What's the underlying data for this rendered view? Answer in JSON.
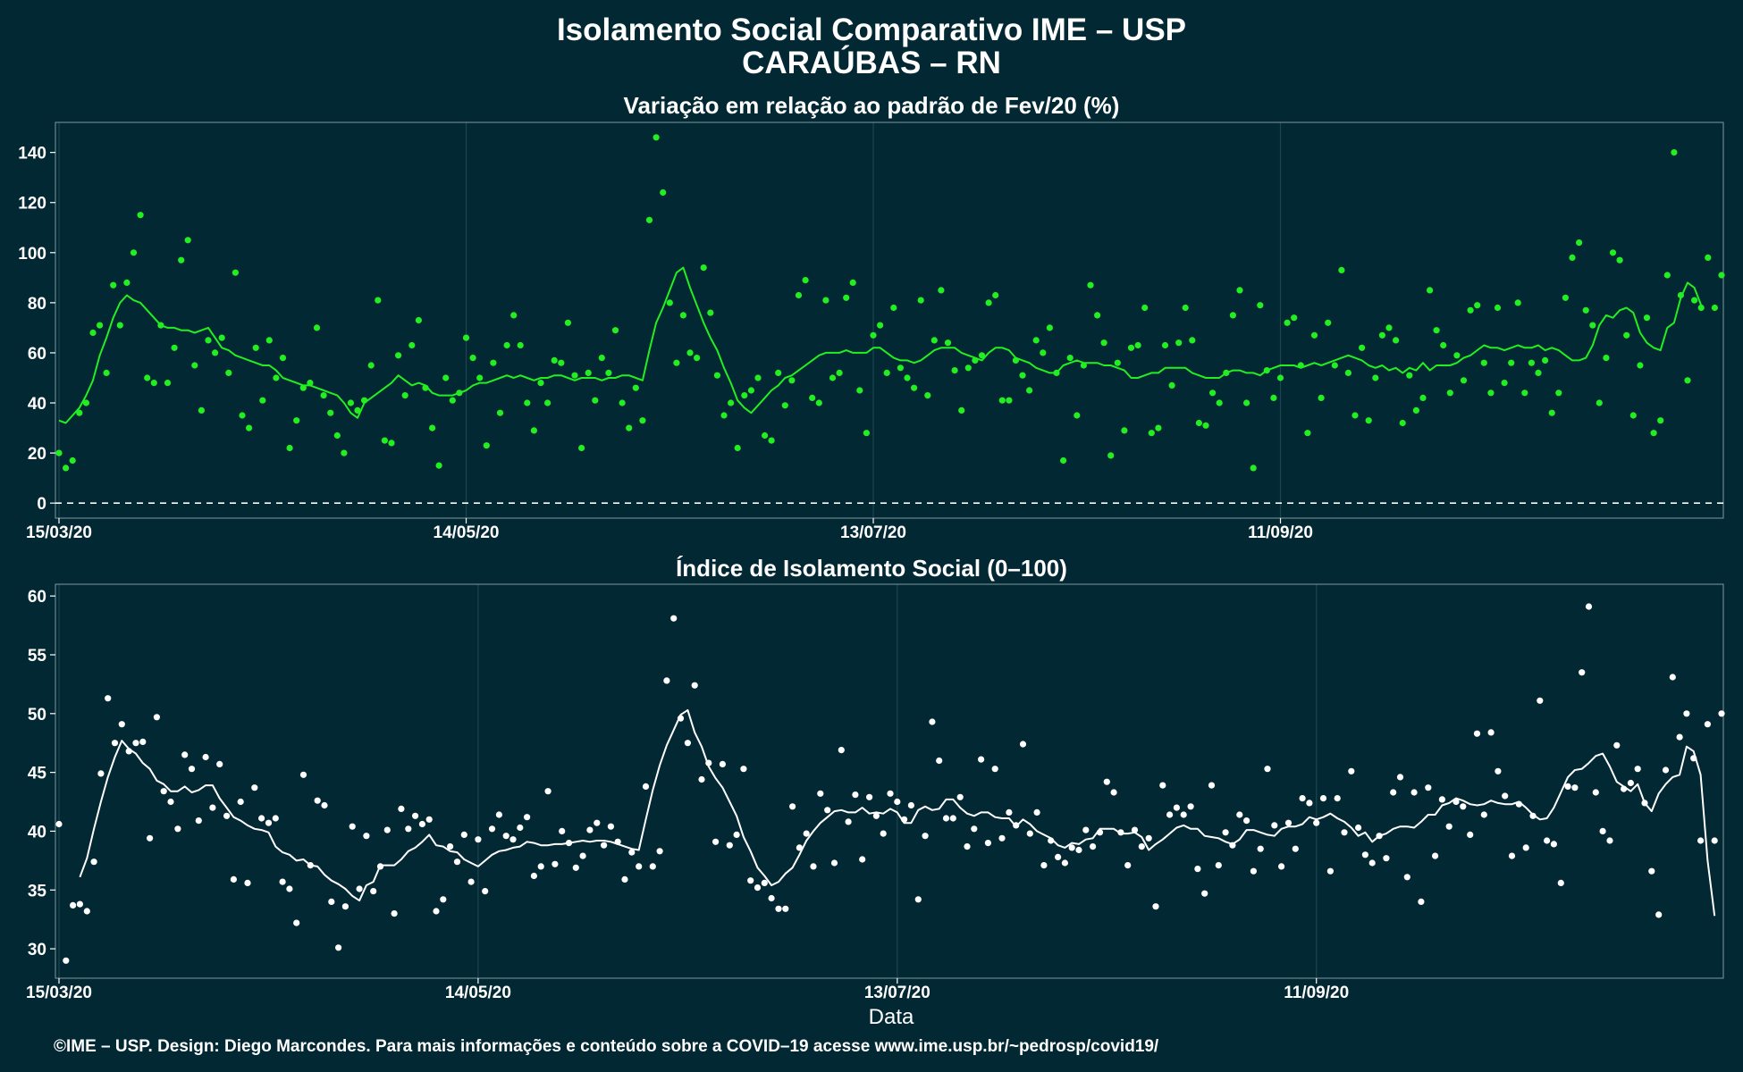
{
  "header": {
    "title": "Isolamento Social Comparativo IME – USP",
    "subtitle": "CARAÚBAS – RN"
  },
  "xlabel": "Data",
  "caption": "©IME – USP. Design: Diego Marcondes. Para mais informações e conteúdo sobre a COVID–19 acesse www.ime.usp.br/~pedrosp/covid19/",
  "colors": {
    "background": "#022833",
    "top_series": "#22ee22",
    "bottom_series": "#ffffff"
  },
  "chart_data": [
    {
      "type": "scatter",
      "title": "Variação em relação ao padrão de Fev/20 (%)",
      "xlabel": "",
      "ylabel": "",
      "x_start_date": "15/03/20",
      "x_tick_labels": [
        "15/03/20",
        "14/05/20",
        "13/07/20",
        "11/09/20"
      ],
      "x_tick_index": [
        0,
        60,
        120,
        180
      ],
      "ylim": [
        -6,
        152
      ],
      "y_ticks": [
        0,
        20,
        40,
        60,
        80,
        100,
        120,
        140
      ],
      "reference_line": 0,
      "series": [
        {
          "role": "points",
          "values": [
            20,
            14,
            17,
            36,
            40,
            68,
            71,
            52,
            87,
            71,
            88,
            100,
            115,
            50,
            48,
            71,
            48,
            62,
            97,
            105,
            55,
            37,
            65,
            60,
            66,
            52,
            92,
            35,
            30,
            62,
            41,
            65,
            50,
            58,
            22,
            33,
            46,
            48,
            70,
            43,
            36,
            27,
            20,
            40,
            37,
            41,
            55,
            81,
            25,
            24,
            59,
            43,
            63,
            73,
            46,
            30,
            15,
            50,
            41,
            44,
            66,
            58,
            50,
            23,
            56,
            36,
            63,
            75,
            63,
            40,
            29,
            48,
            40,
            57,
            56,
            72,
            51,
            22,
            52,
            41,
            58,
            52,
            69,
            40,
            30,
            46,
            33,
            113,
            146,
            124,
            80,
            56,
            75,
            60,
            58,
            94,
            76,
            51,
            35,
            40,
            22,
            43,
            45,
            50,
            27,
            25,
            52,
            39,
            49,
            83,
            89,
            42,
            40,
            81,
            50,
            52,
            82,
            88,
            45,
            28,
            67,
            71,
            52,
            78,
            54,
            50,
            46,
            81,
            43,
            65,
            85,
            64,
            53,
            37,
            54,
            57,
            59,
            80,
            83,
            41,
            41,
            57,
            51,
            45,
            65,
            60,
            70,
            52,
            17,
            58,
            35,
            55,
            87,
            75,
            64,
            19,
            56,
            29,
            62,
            63,
            78,
            28,
            30,
            63,
            47,
            64,
            78,
            65,
            32,
            31,
            44,
            40,
            52,
            75,
            85,
            40,
            14,
            79,
            53,
            42,
            50,
            72,
            74,
            55,
            28,
            67,
            42,
            72,
            55,
            93,
            52,
            35,
            62,
            33,
            50,
            67,
            70,
            65,
            32,
            51,
            37,
            42,
            85,
            69,
            63,
            44,
            59,
            49,
            77,
            79,
            56,
            44,
            78,
            48,
            56,
            80,
            44,
            56,
            52,
            57,
            36,
            44,
            82,
            98,
            104,
            77,
            71,
            40,
            58,
            100,
            97,
            67,
            35,
            55,
            74,
            28,
            33,
            91,
            140,
            83,
            49,
            81,
            78,
            98,
            78,
            91
          ],
          "markers": "circle"
        },
        {
          "role": "moving-average",
          "values": [
            33,
            32,
            35,
            38,
            43,
            49,
            59,
            66,
            74,
            80,
            83,
            81,
            80,
            77,
            74,
            71,
            70,
            70,
            69,
            69,
            68,
            69,
            70,
            66,
            62,
            61,
            59,
            58,
            57,
            56,
            55,
            55,
            53,
            50,
            49,
            48,
            47,
            47,
            46,
            45,
            44,
            43,
            40,
            36,
            34,
            40,
            42,
            44,
            46,
            48,
            51,
            49,
            47,
            48,
            47,
            44,
            43,
            43,
            43,
            44,
            45,
            47,
            48,
            48,
            49,
            50,
            51,
            50,
            51,
            50,
            49,
            50,
            50,
            51,
            51,
            50,
            49,
            50,
            50,
            50,
            49,
            50,
            50,
            51,
            51,
            50,
            49,
            61,
            72,
            78,
            85,
            92,
            94,
            86,
            79,
            72,
            66,
            61,
            54,
            48,
            41,
            38,
            36,
            39,
            42,
            45,
            47,
            50,
            51,
            53,
            55,
            57,
            59,
            60,
            60,
            60,
            61,
            60,
            60,
            60,
            62,
            62,
            60,
            58,
            57,
            57,
            56,
            57,
            59,
            61,
            62,
            62,
            62,
            60,
            59,
            58,
            57,
            60,
            62,
            62,
            61,
            58,
            57,
            56,
            54,
            53,
            52,
            52,
            55,
            56,
            57,
            56,
            56,
            56,
            55,
            55,
            54,
            53,
            50,
            50,
            51,
            52,
            52,
            54,
            54,
            54,
            54,
            52,
            51,
            50,
            50,
            50,
            52,
            53,
            53,
            52,
            52,
            51,
            53,
            54,
            55,
            55,
            55,
            54,
            55,
            56,
            55,
            56,
            57,
            58,
            59,
            58,
            57,
            55,
            54,
            55,
            53,
            54,
            52,
            54,
            53,
            56,
            53,
            55,
            55,
            55,
            56,
            58,
            59,
            61,
            63,
            62,
            62,
            61,
            62,
            63,
            62,
            62,
            63,
            61,
            62,
            61,
            59,
            57,
            57,
            58,
            63,
            71,
            75,
            74,
            77,
            78,
            76,
            68,
            64,
            62,
            61,
            70,
            72,
            82,
            88,
            86,
            79
          ]
        }
      ]
    },
    {
      "type": "scatter",
      "title": "Índice de Isolamento Social (0–100)",
      "xlabel": "Data",
      "ylabel": "",
      "x_start_date": "15/03/20",
      "x_tick_labels": [
        "15/03/20",
        "14/05/20",
        "13/07/20",
        "11/09/20"
      ],
      "x_tick_index": [
        0,
        60,
        120,
        180
      ],
      "ylim": [
        27.5,
        61
      ],
      "y_ticks": [
        30,
        35,
        40,
        45,
        50,
        55,
        60
      ],
      "series": [
        {
          "role": "points",
          "values": [
            40.6,
            29.0,
            33.7,
            33.8,
            33.2,
            37.4,
            44.9,
            51.3,
            47.5,
            49.1,
            46.8,
            47.5,
            47.6,
            39.4,
            49.7,
            43.4,
            42.5,
            40.2,
            46.5,
            45.3,
            40.9,
            46.3,
            42.0,
            45.7,
            41.3,
            35.9,
            42.5,
            35.6,
            43.7,
            41.1,
            40.7,
            41.1,
            35.7,
            35.1,
            32.2,
            44.8,
            37.1,
            42.6,
            42.2,
            34.0,
            30.1,
            33.6,
            40.4,
            35.1,
            39.6,
            34.9,
            37.0,
            40.1,
            33.0,
            41.9,
            40.2,
            41.3,
            40.6,
            41.0,
            33.2,
            34.2,
            38.7,
            37.4,
            39.7,
            35.7,
            39.3,
            34.9,
            40.2,
            41.4,
            39.6,
            39.3,
            40.3,
            41.2,
            36.2,
            37.0,
            43.4,
            37.2,
            40.0,
            39.0,
            36.9,
            37.9,
            40.1,
            40.7,
            38.8,
            40.4,
            39.1,
            35.9,
            38.2,
            37.0,
            43.8,
            37.0,
            38.3,
            52.8,
            58.1,
            49.6,
            47.5,
            52.4,
            44.4,
            45.8,
            39.1,
            45.7,
            38.8,
            39.7,
            45.3,
            35.8,
            35.2,
            35.6,
            34.3,
            33.4,
            33.4,
            42.1,
            38.6,
            39.8,
            37.0,
            43.2,
            41.8,
            37.3,
            46.9,
            40.8,
            43.1,
            37.6,
            42.9,
            41.3,
            39.8,
            43.2,
            42.5,
            41.0,
            42.2,
            34.2,
            39.6,
            49.3,
            46.0,
            41.1,
            41.1,
            42.9,
            38.7,
            40.2,
            46.1,
            39.0,
            45.3,
            39.4,
            41.6,
            40.5,
            47.4,
            39.8,
            41.6,
            37.1,
            39.2,
            37.8,
            37.3,
            38.6,
            38.4,
            40.1,
            38.7,
            39.9,
            44.2,
            43.3,
            39.9,
            37.1,
            40.1,
            38.7,
            39.4,
            33.6,
            43.9,
            41.4,
            42.0,
            41.4,
            42.1,
            36.8,
            34.7,
            43.9,
            37.1,
            39.9,
            38.8,
            41.4,
            40.9,
            36.6,
            38.5,
            45.3,
            40.5,
            37.0,
            40.7,
            38.5,
            42.8,
            42.4,
            40.7,
            42.8,
            36.6,
            42.8,
            39.9,
            45.1,
            40.3,
            38.0,
            37.3,
            39.6,
            37.7,
            43.3,
            44.6,
            36.1,
            43.3,
            34.0,
            43.7,
            37.9,
            42.7,
            40.4,
            42.5,
            42.1,
            39.7,
            48.3,
            41.4,
            48.4,
            45.1,
            43.0,
            37.9,
            42.3,
            38.6,
            41.3,
            51.1,
            39.2,
            38.9,
            35.6,
            43.8,
            43.7,
            53.5,
            59.1,
            43.3,
            40.0,
            39.2,
            47.3,
            43.6,
            44.1,
            45.3,
            42.4,
            36.6,
            32.9,
            45.2,
            53.1,
            48.0,
            50.0,
            46.2,
            39.2,
            49.1,
            39.2,
            50.0
          ],
          "markers": "circle"
        },
        {
          "role": "moving-average",
          "values": [
            null,
            null,
            null,
            36.1,
            37.7,
            40.2,
            42.5,
            44.6,
            46.3,
            47.7,
            47.0,
            46.6,
            45.8,
            45.3,
            44.3,
            44.0,
            43.4,
            43.4,
            43.8,
            43.3,
            43.5,
            43.9,
            43.9,
            42.8,
            42.0,
            41.2,
            40.9,
            40.5,
            40.2,
            40.1,
            39.9,
            38.7,
            38.2,
            38.0,
            37.5,
            37.6,
            37.1,
            37.0,
            36.3,
            35.8,
            35.5,
            35.1,
            34.5,
            34.1,
            35.4,
            35.7,
            37.1,
            37.1,
            37.1,
            37.6,
            38.3,
            38.6,
            39.1,
            39.7,
            38.8,
            38.7,
            38.3,
            38.2,
            37.6,
            37.3,
            37.0,
            37.5,
            38.0,
            38.3,
            38.4,
            38.6,
            38.7,
            39.1,
            39.0,
            38.8,
            38.8,
            38.9,
            38.9,
            39.0,
            39.1,
            39.2,
            39.1,
            39.2,
            39.2,
            39.1,
            38.9,
            38.7,
            38.5,
            38.4,
            41.0,
            43.5,
            45.6,
            47.3,
            48.6,
            49.9,
            50.3,
            48.4,
            47.2,
            45.5,
            44.5,
            43.7,
            42.5,
            41.3,
            39.5,
            38.3,
            36.9,
            36.2,
            35.4,
            35.7,
            36.4,
            36.9,
            38.0,
            39.2,
            40.0,
            40.7,
            41.2,
            41.7,
            41.8,
            41.6,
            41.6,
            42.0,
            41.5,
            41.6,
            41.5,
            41.9,
            41.6,
            40.7,
            40.7,
            41.8,
            42.1,
            41.8,
            41.9,
            42.7,
            42.7,
            42.0,
            41.5,
            41.3,
            41.6,
            41.6,
            41.2,
            41.1,
            41.1,
            40.4,
            41.0,
            40.6,
            40.0,
            39.7,
            39.4,
            38.8,
            38.6,
            39.0,
            38.9,
            39.3,
            39.4,
            40.2,
            40.2,
            40.2,
            39.8,
            39.8,
            39.9,
            39.5,
            38.4,
            38.9,
            39.3,
            39.8,
            40.3,
            40.5,
            40.2,
            40.2,
            39.6,
            39.5,
            39.4,
            39.1,
            38.9,
            39.3,
            40.1,
            40.1,
            39.9,
            39.7,
            39.6,
            40.2,
            40.4,
            40.4,
            40.6,
            41.2,
            41.0,
            41.2,
            41.5,
            41.1,
            40.8,
            40.3,
            39.6,
            39.9,
            39.1,
            39.6,
            39.8,
            40.2,
            40.4,
            40.4,
            40.3,
            40.8,
            41.4,
            41.4,
            42.2,
            42.4,
            42.8,
            42.6,
            42.3,
            42.2,
            42.3,
            42.6,
            42.4,
            42.3,
            42.3,
            42.5,
            42.0,
            41.4,
            41.0,
            41.1,
            42.0,
            43.3,
            44.6,
            45.2,
            45.3,
            45.8,
            46.4,
            46.6,
            45.5,
            44.2,
            43.8,
            43.4,
            44.0,
            42.4,
            41.7,
            43.2,
            44.0,
            44.6,
            44.8,
            47.2,
            46.8,
            44.8,
            37.5,
            32.8
          ]
        }
      ]
    }
  ]
}
